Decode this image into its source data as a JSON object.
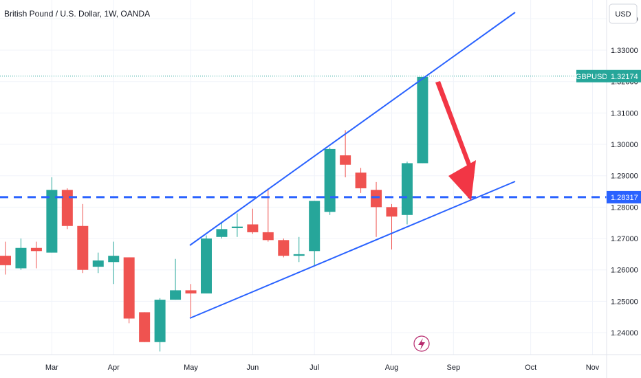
{
  "header": {
    "title": "British Pound / U.S. Dollar, 1W, OANDA"
  },
  "axis": {
    "currency": "USD"
  },
  "price_labels": {
    "symbol": "GBPUSD",
    "current": "1.32174",
    "support": "1.28317"
  },
  "colors": {
    "up": "#26a69a",
    "down": "#ef5350",
    "trend": "#2962ff",
    "arrow": "#f23645",
    "grid": "#f0f3fa"
  },
  "icons": {
    "lightning": "lightning-icon"
  },
  "chart_data": {
    "type": "candlestick",
    "title": "British Pound / U.S. Dollar, 1W, OANDA",
    "ylim": [
      1.233,
      1.346
    ],
    "y_ticks": [
      "1.24000",
      "1.25000",
      "1.26000",
      "1.27000",
      "1.28000",
      "1.29000",
      "1.30000",
      "1.31000",
      "1.32000",
      "1.33000",
      "1.34000"
    ],
    "x_ticks": [
      "Mar",
      "Apr",
      "May",
      "Jun",
      "Jul",
      "Aug",
      "Sep",
      "Oct",
      "Nov"
    ],
    "candles": [
      {
        "o": 1.2645,
        "h": 1.269,
        "l": 1.2585,
        "c": 1.2615
      },
      {
        "o": 1.2605,
        "h": 1.27,
        "l": 1.26,
        "c": 1.267
      },
      {
        "o": 1.267,
        "h": 1.269,
        "l": 1.2605,
        "c": 1.266
      },
      {
        "o": 1.2655,
        "h": 1.2895,
        "l": 1.2655,
        "c": 1.2855
      },
      {
        "o": 1.2855,
        "h": 1.286,
        "l": 1.273,
        "c": 1.274
      },
      {
        "o": 1.274,
        "h": 1.281,
        "l": 1.259,
        "c": 1.26
      },
      {
        "o": 1.261,
        "h": 1.2655,
        "l": 1.259,
        "c": 1.263
      },
      {
        "o": 1.2625,
        "h": 1.269,
        "l": 1.2555,
        "c": 1.2645
      },
      {
        "o": 1.264,
        "h": 1.264,
        "l": 1.243,
        "c": 1.2445
      },
      {
        "o": 1.2465,
        "h": 1.2465,
        "l": 1.237,
        "c": 1.237
      },
      {
        "o": 1.237,
        "h": 1.251,
        "l": 1.234,
        "c": 1.2505
      },
      {
        "o": 1.2505,
        "h": 1.2635,
        "l": 1.2505,
        "c": 1.2535
      },
      {
        "o": 1.2535,
        "h": 1.2555,
        "l": 1.245,
        "c": 1.2525
      },
      {
        "o": 1.2525,
        "h": 1.271,
        "l": 1.2525,
        "c": 1.27
      },
      {
        "o": 1.2705,
        "h": 1.275,
        "l": 1.27,
        "c": 1.273
      },
      {
        "o": 1.2733,
        "h": 1.278,
        "l": 1.2705,
        "c": 1.2738
      },
      {
        "o": 1.2745,
        "h": 1.2795,
        "l": 1.2715,
        "c": 1.272
      },
      {
        "o": 1.272,
        "h": 1.286,
        "l": 1.269,
        "c": 1.2695
      },
      {
        "o": 1.2695,
        "h": 1.27,
        "l": 1.264,
        "c": 1.2645
      },
      {
        "o": 1.2645,
        "h": 1.2705,
        "l": 1.2625,
        "c": 1.265
      },
      {
        "o": 1.266,
        "h": 1.282,
        "l": 1.2615,
        "c": 1.282
      },
      {
        "o": 1.2785,
        "h": 1.299,
        "l": 1.2775,
        "c": 1.2985
      },
      {
        "o": 1.2965,
        "h": 1.3045,
        "l": 1.2895,
        "c": 1.2935
      },
      {
        "o": 1.291,
        "h": 1.2925,
        "l": 1.2845,
        "c": 1.286
      },
      {
        "o": 1.2855,
        "h": 1.288,
        "l": 1.2705,
        "c": 1.28
      },
      {
        "o": 1.28,
        "h": 1.281,
        "l": 1.2665,
        "c": 1.277
      },
      {
        "o": 1.2775,
        "h": 1.2945,
        "l": 1.2745,
        "c": 1.294
      },
      {
        "o": 1.294,
        "h": 1.3215,
        "l": 1.294,
        "c": 1.3215
      }
    ],
    "lines": {
      "support": 1.28317,
      "current": 1.32174
    }
  }
}
